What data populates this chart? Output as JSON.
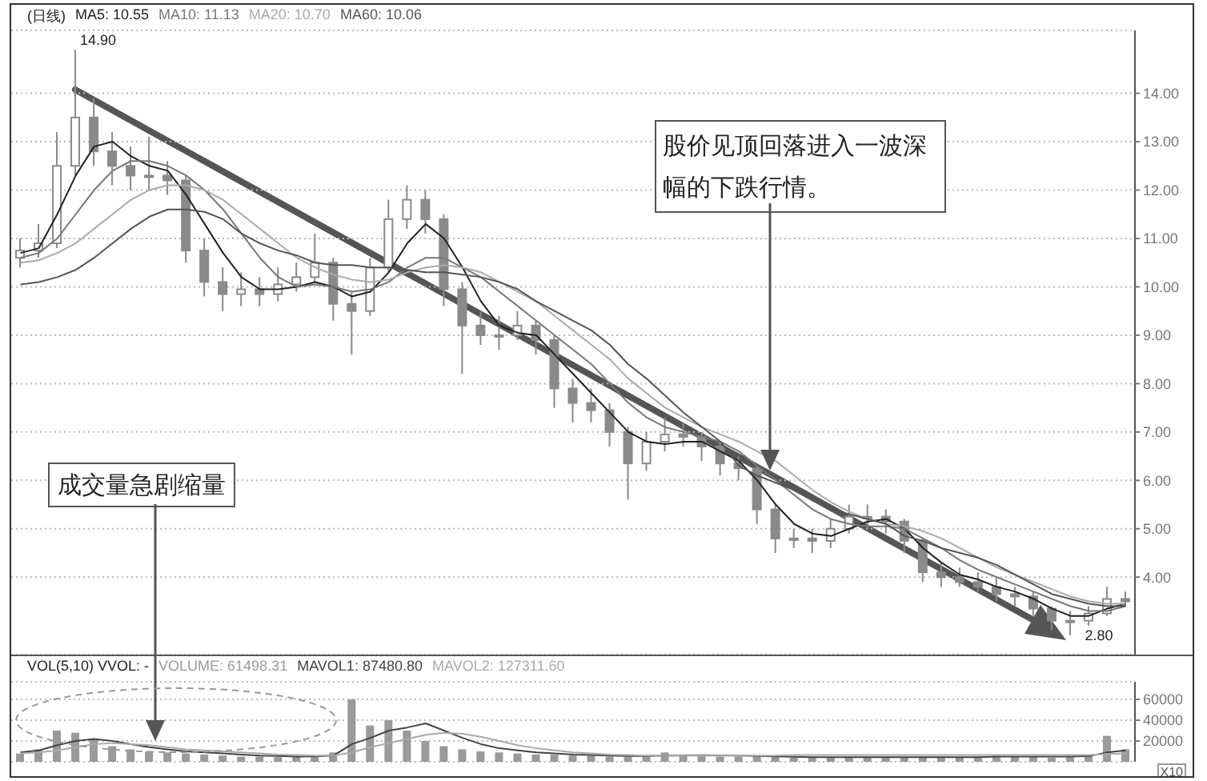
{
  "chart_data": [
    {
      "type": "candlestick",
      "title": "(日线)",
      "legend": "top left",
      "grid": "y",
      "tick_labels": "y",
      "color": "#8a8a8a",
      "categories": [
        null,
        null,
        null,
        null,
        null,
        null,
        null,
        null,
        null,
        null,
        null,
        null,
        null,
        null,
        null,
        null,
        null,
        null,
        null,
        null,
        null,
        null,
        null,
        null,
        null,
        null,
        null,
        null,
        null,
        null,
        null,
        null,
        null,
        null,
        null,
        null,
        null,
        null,
        null,
        null,
        null,
        null,
        null,
        null,
        null,
        null,
        null,
        null,
        null,
        null,
        null,
        null,
        null,
        null,
        null,
        null,
        null,
        null,
        null,
        null,
        null
      ],
      "ohlc": [
        [
          10.6,
          11.0,
          10.4,
          10.75
        ],
        [
          10.75,
          11.3,
          10.6,
          10.9
        ],
        [
          10.9,
          13.2,
          10.8,
          12.5
        ],
        [
          12.5,
          14.9,
          12.3,
          13.5
        ],
        [
          13.5,
          13.9,
          12.5,
          12.8
        ],
        [
          12.8,
          13.2,
          12.1,
          12.5
        ],
        [
          12.5,
          12.9,
          12.0,
          12.3
        ],
        [
          12.3,
          13.1,
          12.0,
          12.3
        ],
        [
          12.3,
          12.6,
          11.9,
          12.2
        ],
        [
          12.2,
          12.3,
          10.5,
          10.75
        ],
        [
          10.75,
          11.0,
          9.8,
          10.1
        ],
        [
          10.1,
          10.4,
          9.5,
          9.85
        ],
        [
          9.85,
          10.3,
          9.6,
          9.95
        ],
        [
          9.95,
          10.2,
          9.6,
          9.85
        ],
        [
          9.85,
          10.4,
          9.7,
          10.05
        ],
        [
          10.05,
          10.5,
          9.9,
          10.2
        ],
        [
          10.2,
          11.1,
          10.1,
          10.5
        ],
        [
          10.5,
          10.6,
          9.3,
          9.65
        ],
        [
          9.65,
          9.9,
          8.6,
          9.5
        ],
        [
          9.5,
          10.6,
          9.4,
          10.4
        ],
        [
          10.4,
          11.8,
          10.3,
          11.4
        ],
        [
          11.4,
          12.1,
          11.2,
          11.8
        ],
        [
          11.8,
          12.0,
          11.1,
          11.4
        ],
        [
          11.4,
          11.5,
          9.6,
          9.95
        ],
        [
          9.95,
          10.1,
          8.2,
          9.2
        ],
        [
          9.2,
          9.5,
          8.8,
          9.0
        ],
        [
          9.0,
          9.4,
          8.7,
          9.0
        ],
        [
          9.0,
          9.5,
          8.9,
          9.2
        ],
        [
          9.2,
          9.3,
          8.6,
          8.9
        ],
        [
          8.9,
          9.0,
          7.5,
          7.9
        ],
        [
          7.9,
          8.1,
          7.2,
          7.6
        ],
        [
          7.6,
          7.9,
          7.2,
          7.45
        ],
        [
          7.45,
          7.6,
          6.7,
          7.0
        ],
        [
          7.0,
          7.1,
          5.6,
          6.35
        ],
        [
          6.35,
          7.0,
          6.2,
          6.8
        ],
        [
          6.8,
          7.3,
          6.6,
          6.95
        ],
        [
          6.95,
          7.2,
          6.7,
          6.9
        ],
        [
          6.9,
          7.0,
          6.4,
          6.7
        ],
        [
          6.7,
          6.8,
          6.1,
          6.35
        ],
        [
          6.35,
          6.5,
          6.0,
          6.25
        ],
        [
          6.25,
          6.3,
          5.1,
          5.4
        ],
        [
          5.4,
          5.5,
          4.5,
          4.8
        ],
        [
          4.8,
          5.0,
          4.6,
          4.8
        ],
        [
          4.8,
          5.0,
          4.5,
          4.75
        ],
        [
          4.75,
          5.2,
          4.6,
          5.0
        ],
        [
          5.0,
          5.5,
          4.9,
          5.25
        ],
        [
          5.25,
          5.5,
          5.0,
          5.25
        ],
        [
          5.25,
          5.4,
          4.9,
          5.15
        ],
        [
          5.15,
          5.2,
          4.5,
          4.75
        ],
        [
          4.75,
          4.8,
          3.9,
          4.1
        ],
        [
          4.1,
          4.3,
          3.8,
          4.0
        ],
        [
          4.0,
          4.2,
          3.8,
          3.9
        ],
        [
          3.9,
          4.1,
          3.7,
          3.8
        ],
        [
          3.8,
          4.0,
          3.5,
          3.65
        ],
        [
          3.65,
          3.8,
          3.4,
          3.6
        ],
        [
          3.6,
          3.7,
          3.2,
          3.35
        ],
        [
          3.35,
          3.4,
          2.9,
          3.1
        ],
        [
          3.1,
          3.3,
          2.8,
          3.1
        ],
        [
          3.1,
          3.4,
          3.0,
          3.25
        ],
        [
          3.25,
          3.8,
          3.2,
          3.55
        ],
        [
          3.55,
          3.7,
          3.4,
          3.5
        ]
      ],
      "series": [
        {
          "name": "MA5: 10.55",
          "type": "line",
          "color": "#222222",
          "values": [
            10.7,
            10.8,
            11.5,
            12.3,
            12.9,
            13.0,
            12.7,
            12.5,
            12.4,
            11.9,
            11.3,
            10.7,
            10.2,
            9.95,
            9.95,
            10.0,
            10.1,
            10.0,
            9.8,
            9.9,
            10.3,
            10.9,
            11.3,
            11.0,
            10.4,
            9.7,
            9.2,
            9.05,
            9.0,
            8.6,
            8.2,
            7.8,
            7.4,
            7.0,
            6.8,
            6.75,
            6.8,
            6.8,
            6.6,
            6.4,
            6.0,
            5.5,
            5.1,
            4.9,
            4.85,
            5.0,
            5.15,
            5.2,
            5.0,
            4.6,
            4.3,
            4.05,
            3.95,
            3.8,
            3.7,
            3.55,
            3.35,
            3.2,
            3.2,
            3.35,
            3.45
          ]
        },
        {
          "name": "MA10: 11.13",
          "type": "line",
          "color": "#777777",
          "values": [
            10.6,
            10.7,
            11.0,
            11.5,
            12.0,
            12.4,
            12.6,
            12.6,
            12.5,
            12.3,
            12.0,
            11.6,
            11.1,
            10.6,
            10.2,
            10.0,
            10.05,
            10.0,
            9.9,
            9.95,
            10.1,
            10.4,
            10.6,
            10.6,
            10.4,
            10.2,
            9.9,
            9.6,
            9.3,
            9.0,
            8.7,
            8.4,
            8.0,
            7.6,
            7.3,
            7.1,
            7.0,
            6.9,
            6.8,
            6.6,
            6.3,
            6.0,
            5.7,
            5.4,
            5.2,
            5.1,
            5.05,
            5.05,
            5.0,
            4.8,
            4.6,
            4.35,
            4.15,
            4.0,
            3.85,
            3.7,
            3.55,
            3.4,
            3.3,
            3.3,
            3.4
          ]
        },
        {
          "name": "MA20: 10.70",
          "type": "line",
          "color": "#aaaaaa",
          "values": [
            10.5,
            10.55,
            10.7,
            10.9,
            11.2,
            11.5,
            11.8,
            12.0,
            12.1,
            12.1,
            12.0,
            11.8,
            11.5,
            11.2,
            10.9,
            10.6,
            10.4,
            10.25,
            10.15,
            10.1,
            10.15,
            10.3,
            10.4,
            10.45,
            10.4,
            10.3,
            10.1,
            9.9,
            9.7,
            9.4,
            9.1,
            8.8,
            8.5,
            8.1,
            7.8,
            7.5,
            7.3,
            7.1,
            6.95,
            6.8,
            6.6,
            6.4,
            6.1,
            5.8,
            5.55,
            5.35,
            5.2,
            5.1,
            5.05,
            4.95,
            4.8,
            4.6,
            4.4,
            4.2,
            4.05,
            3.9,
            3.75,
            3.6,
            3.5,
            3.45,
            3.45
          ]
        },
        {
          "name": "MA60: 10.06",
          "type": "line",
          "color": "#555555",
          "values": [
            10.05,
            10.1,
            10.2,
            10.35,
            10.6,
            10.9,
            11.2,
            11.45,
            11.6,
            11.6,
            11.55,
            11.4,
            11.1,
            10.9,
            10.75,
            10.65,
            10.5,
            10.45,
            10.45,
            10.4,
            10.4,
            10.35,
            10.3,
            10.3,
            10.25,
            10.2,
            10.1,
            9.95,
            9.7,
            9.5,
            9.3,
            9.1,
            8.8,
            8.4,
            8.1,
            7.75,
            7.4,
            7.1,
            6.8,
            6.3,
            6.1,
            5.95,
            5.8,
            5.6,
            5.4,
            5.3,
            5.2,
            5.1,
            4.85,
            4.75,
            4.6,
            4.5,
            4.4,
            4.25,
            4.05,
            3.85,
            3.65,
            3.55,
            3.45,
            3.4,
            3.4
          ]
        }
      ],
      "ylim": [
        2.4,
        15.3
      ],
      "yticks": [
        {
          "value": 4,
          "label": "4.00"
        },
        {
          "value": 5,
          "label": "5.00"
        },
        {
          "value": 6,
          "label": "6.00"
        },
        {
          "value": 7,
          "label": "7.00"
        },
        {
          "value": 8,
          "label": "8.00"
        },
        {
          "value": 9,
          "label": "9.00"
        },
        {
          "value": 10,
          "label": "10.00"
        },
        {
          "value": 11,
          "label": "11.00"
        },
        {
          "value": 12,
          "label": "12.00"
        },
        {
          "value": 13,
          "label": "13.00"
        },
        {
          "value": 14,
          "label": "14.00"
        }
      ],
      "annotations": [
        "14.90",
        "2.80",
        "股价见顶回落进入一波深幅的下跌行情。",
        "成交量急剧缩量"
      ]
    },
    {
      "type": "bar",
      "title": "VOL(5,10) VVOL: -",
      "legend": "top left",
      "grid": "y",
      "tick_labels": "y",
      "categories": [
        null,
        null,
        null,
        null,
        null,
        null,
        null,
        null,
        null,
        null,
        null,
        null,
        null,
        null,
        null,
        null,
        null,
        null,
        null,
        null,
        null,
        null,
        null,
        null,
        null,
        null,
        null,
        null,
        null,
        null,
        null,
        null,
        null,
        null,
        null,
        null,
        null,
        null,
        null,
        null,
        null,
        null,
        null,
        null,
        null,
        null,
        null,
        null,
        null,
        null,
        null,
        null,
        null,
        null,
        null,
        null,
        null,
        null,
        null,
        null,
        null
      ],
      "series": [
        {
          "name": "VOLUME: 61498.31",
          "type": "bar",
          "color": "#9a9a9a",
          "values": [
            8000,
            12000,
            30000,
            28000,
            22000,
            15000,
            12000,
            10000,
            9000,
            8000,
            7000,
            6000,
            5000,
            5000,
            4500,
            5000,
            6000,
            9000,
            60000,
            35000,
            40000,
            30000,
            20000,
            15000,
            12000,
            10000,
            9000,
            8000,
            7000,
            7000,
            6000,
            6000,
            5000,
            5000,
            5000,
            9000,
            7000,
            6000,
            5000,
            5000,
            6000,
            5000,
            4000,
            4000,
            4000,
            5000,
            5000,
            4000,
            4000,
            5000,
            5000,
            4000,
            5000,
            6000,
            5000,
            5000,
            4000,
            5000,
            7000,
            25000,
            12000
          ]
        },
        {
          "name": "MAVOL1: 87480.80",
          "type": "line",
          "color": "#444444",
          "values": [
            9000,
            11000,
            16000,
            20000,
            22000,
            20000,
            17000,
            14000,
            12000,
            10000,
            9000,
            8000,
            7000,
            6000,
            5500,
            5000,
            5200,
            6000,
            17000,
            23000,
            30000,
            33000,
            37000,
            30000,
            23000,
            17000,
            13000,
            11000,
            9000,
            8000,
            7000,
            6500,
            6000,
            5500,
            5500,
            6000,
            6200,
            6300,
            6200,
            6000,
            5500,
            5200,
            4800,
            4500,
            4500,
            4500,
            4500,
            4500,
            4500,
            4500,
            4500,
            4500,
            4500,
            5000,
            5000,
            5000,
            5000,
            5000,
            5500,
            9000,
            11000
          ]
        },
        {
          "name": "MAVOL2: 127311.60",
          "type": "line",
          "color": "#aaaaaa",
          "values": [
            8000,
            9000,
            11000,
            14000,
            17000,
            18000,
            17000,
            16000,
            14000,
            12000,
            11000,
            10000,
            9000,
            8000,
            7000,
            6500,
            6000,
            6000,
            9000,
            14000,
            18000,
            22000,
            26000,
            28000,
            27000,
            24000,
            20000,
            16000,
            13000,
            11000,
            9000,
            8000,
            7000,
            6500,
            6000,
            6000,
            6000,
            6000,
            6000,
            6000,
            6000,
            6000,
            6500,
            6500,
            6500,
            6500,
            6500,
            6500,
            6500,
            6500,
            6500,
            6500,
            6500,
            6500,
            6500,
            6500,
            6500,
            6500,
            6500,
            7500,
            8000
          ]
        }
      ],
      "ylim": [
        0,
        77000
      ],
      "yticks": [
        20000,
        40000,
        60000
      ],
      "annotations": [
        "X10"
      ]
    }
  ]
}
